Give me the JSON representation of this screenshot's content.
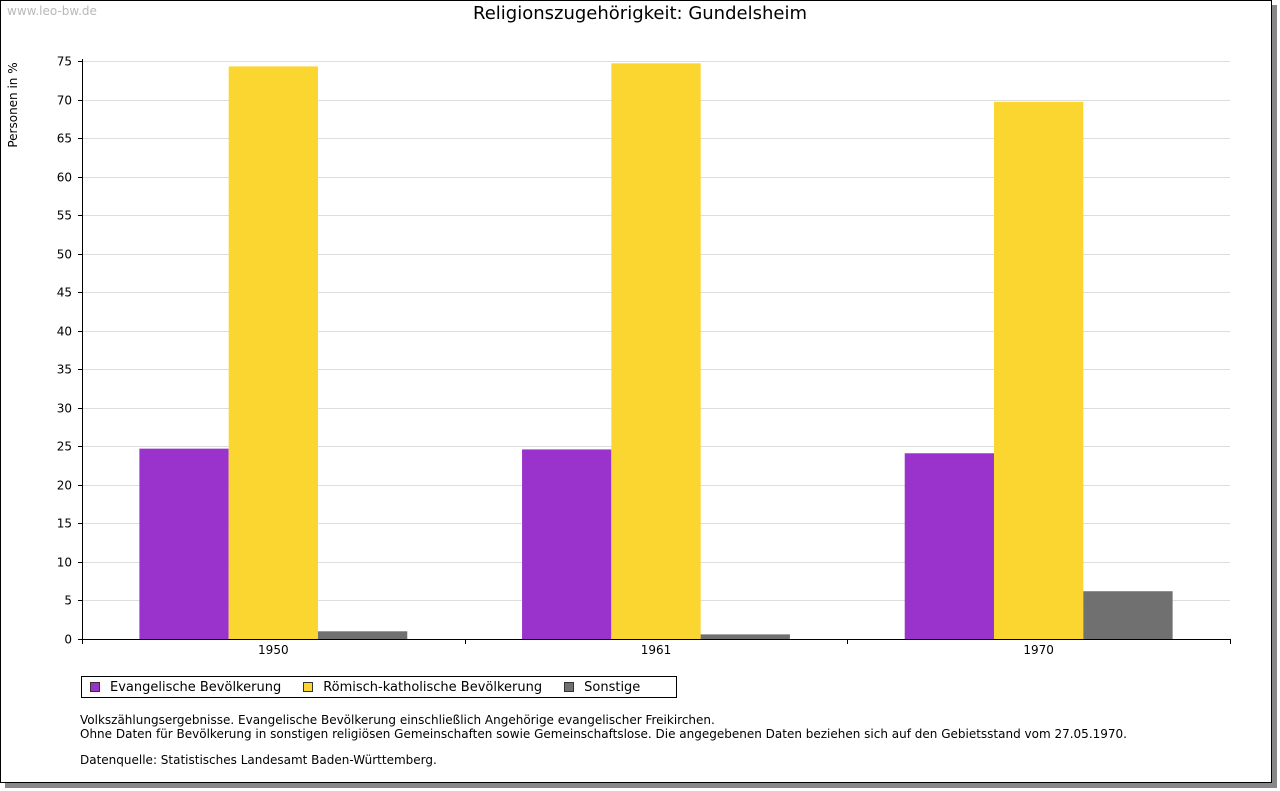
{
  "watermark": "www.leo-bw.de",
  "chart_data": {
    "type": "bar",
    "title": "Religionszugehörigkeit: Gundelsheim",
    "ylabel": "Personen in %",
    "xlabel": "",
    "ylim": [
      0,
      75
    ],
    "yticks": [
      0,
      5,
      10,
      15,
      20,
      25,
      30,
      35,
      40,
      45,
      50,
      55,
      60,
      65,
      70,
      75
    ],
    "grid": true,
    "categories": [
      "1950",
      "1961",
      "1970"
    ],
    "series": [
      {
        "name": "Evangelische Bevölkerung",
        "color": "#9933cc",
        "values": [
          24.7,
          24.6,
          24.1
        ]
      },
      {
        "name": "Römisch-katholische Bevölkerung",
        "color": "#fcd630",
        "values": [
          74.3,
          74.7,
          69.7
        ]
      },
      {
        "name": "Sonstige",
        "color": "#707070",
        "values": [
          1.0,
          0.6,
          6.2
        ]
      }
    ],
    "legend_position": "bottom-left"
  },
  "notes": {
    "line1": "Volkszählungsergebnisse. Evangelische Bevölkerung einschließlich Angehörige evangelischer Freikirchen.",
    "line2": "Ohne Daten für Bevölkerung in sonstigen religiösen Gemeinschaften sowie Gemeinschaftslose. Die angegebenen Daten beziehen sich auf den Gebietsstand vom 27.05.1970.",
    "source": "Datenquelle: Statistisches Landesamt Baden-Württemberg."
  }
}
